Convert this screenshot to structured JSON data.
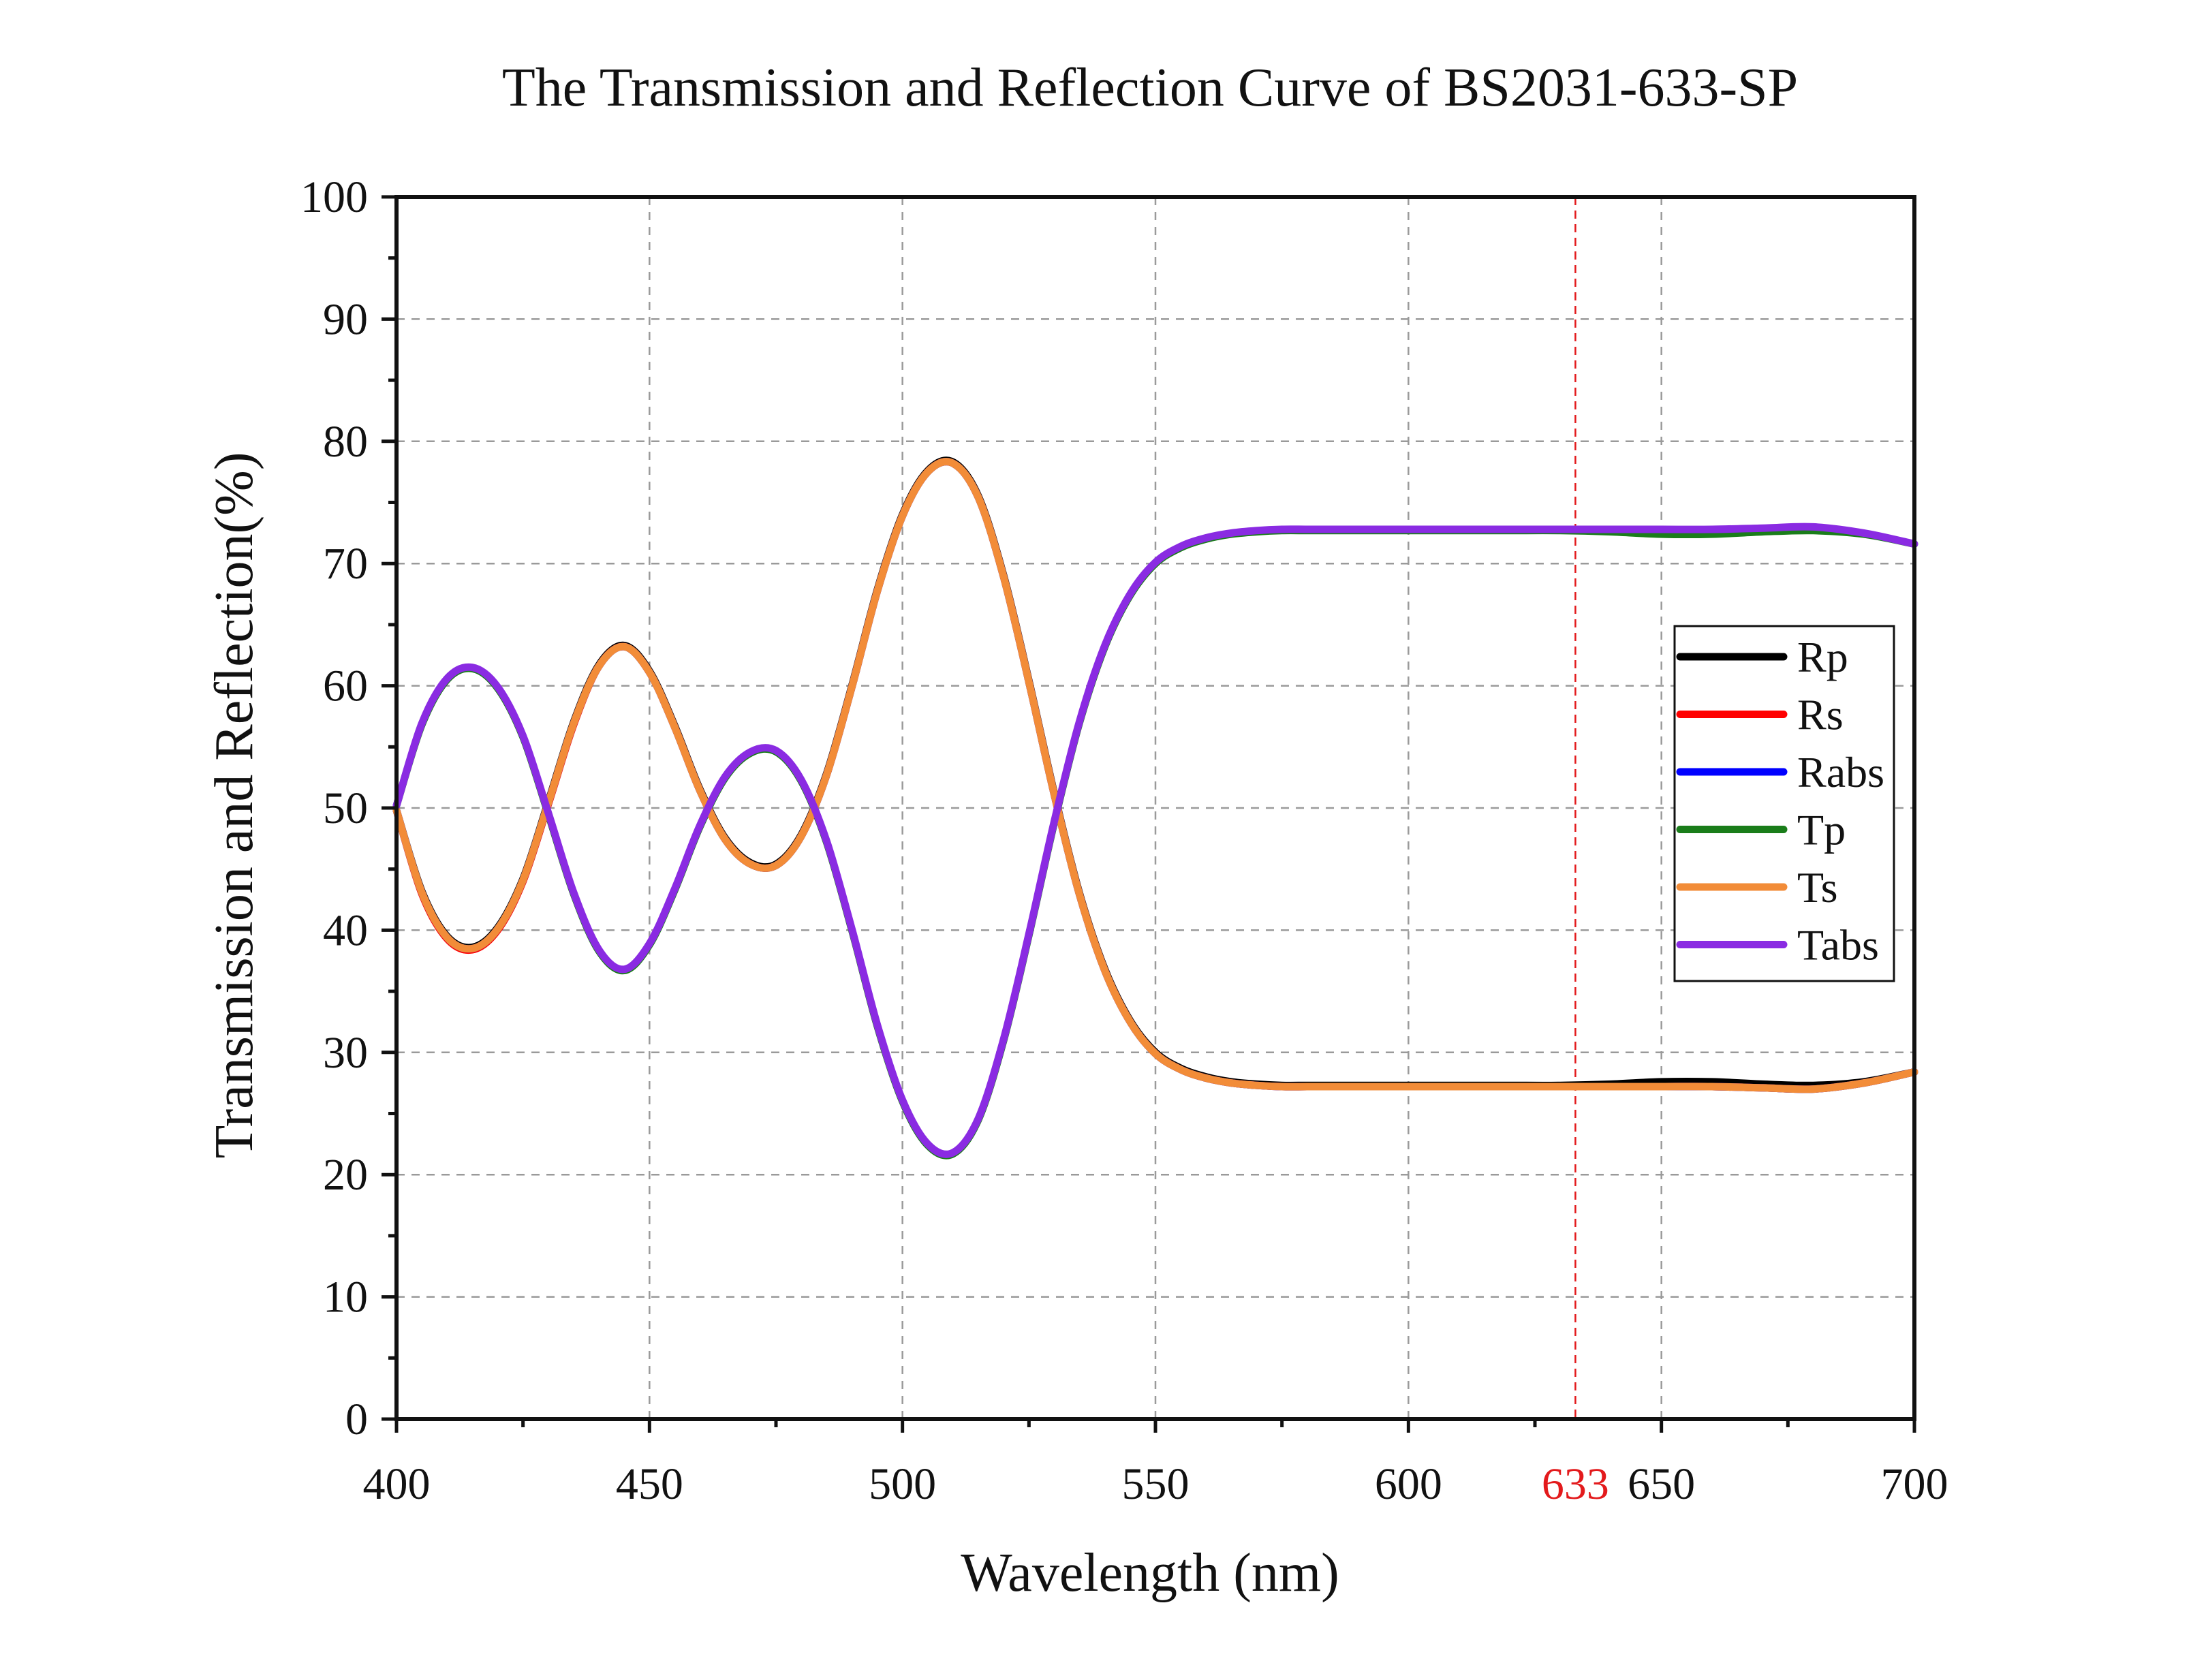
{
  "chart_data": {
    "type": "line",
    "title": "The Transmission and Reflection Curve of BS2031-633-SP",
    "xlabel": "Wavelength (nm)",
    "ylabel": "Transmission and Reflection(%)",
    "xlim": [
      400,
      700
    ],
    "ylim": [
      0,
      100
    ],
    "xticks": [
      400,
      450,
      500,
      550,
      600,
      650,
      700
    ],
    "yticks": [
      0,
      10,
      20,
      30,
      40,
      50,
      60,
      70,
      80,
      90,
      100
    ],
    "grid": true,
    "legend_position": "right",
    "reference_line": {
      "x": 633,
      "label": "633",
      "color": "#e31a1c"
    },
    "x": [
      400,
      405,
      410,
      415,
      420,
      425,
      430,
      435,
      440,
      445,
      450,
      455,
      460,
      465,
      470,
      475,
      480,
      485,
      490,
      495,
      500,
      505,
      510,
      515,
      520,
      525,
      530,
      535,
      540,
      545,
      550,
      555,
      560,
      565,
      570,
      575,
      580,
      585,
      590,
      595,
      600,
      610,
      620,
      630,
      640,
      650,
      660,
      670,
      680,
      690,
      700
    ],
    "series": [
      {
        "name": "Rp",
        "color": "#000000",
        "values": [
          49.8,
          43.2,
          39.5,
          38.6,
          40.2,
          44.2,
          50.5,
          57.0,
          61.7,
          63.3,
          61.2,
          56.7,
          51.5,
          47.5,
          45.5,
          45.4,
          47.8,
          52.8,
          60.0,
          67.8,
          74.0,
          77.6,
          78.3,
          75.5,
          69.0,
          60.4,
          51.2,
          43.0,
          36.8,
          32.6,
          30.0,
          28.7,
          28.0,
          27.6,
          27.4,
          27.3,
          27.3,
          27.3,
          27.3,
          27.3,
          27.3,
          27.3,
          27.3,
          27.3,
          27.4,
          27.6,
          27.6,
          27.4,
          27.3,
          27.6,
          28.4
        ]
      },
      {
        "name": "Rs",
        "color": "#ff0000",
        "values": [
          49.8,
          43.0,
          39.3,
          38.4,
          40.0,
          44.0,
          50.3,
          56.8,
          61.6,
          63.2,
          61.1,
          56.6,
          51.4,
          47.4,
          45.4,
          45.3,
          47.7,
          52.7,
          59.9,
          67.7,
          73.9,
          77.5,
          78.2,
          75.4,
          68.9,
          60.3,
          51.1,
          42.9,
          36.7,
          32.5,
          29.9,
          28.6,
          27.9,
          27.5,
          27.3,
          27.2,
          27.2,
          27.2,
          27.2,
          27.2,
          27.2,
          27.2,
          27.2,
          27.2,
          27.2,
          27.2,
          27.2,
          27.1,
          27.0,
          27.5,
          28.4
        ]
      },
      {
        "name": "Rabs",
        "color": "#0000ff",
        "values": [
          49.8,
          43.1,
          39.4,
          38.5,
          40.1,
          44.1,
          50.4,
          56.9,
          61.6,
          63.2,
          61.1,
          56.6,
          51.4,
          47.4,
          45.4,
          45.3,
          47.7,
          52.7,
          59.9,
          67.7,
          73.9,
          77.5,
          78.2,
          75.4,
          68.9,
          60.3,
          51.1,
          42.9,
          36.7,
          32.5,
          29.9,
          28.6,
          27.9,
          27.5,
          27.3,
          27.2,
          27.2,
          27.2,
          27.2,
          27.2,
          27.2,
          27.2,
          27.2,
          27.2,
          27.2,
          27.2,
          27.2,
          27.1,
          27.0,
          27.5,
          28.4
        ]
      },
      {
        "name": "Tp",
        "color": "#1a7d1a",
        "values": [
          50.2,
          56.8,
          60.5,
          61.4,
          59.8,
          55.8,
          49.5,
          43.0,
          38.3,
          36.7,
          38.8,
          43.3,
          48.5,
          52.5,
          54.5,
          54.6,
          52.2,
          47.2,
          40.0,
          32.2,
          26.0,
          22.4,
          21.7,
          24.5,
          31.0,
          39.6,
          48.8,
          57.0,
          63.2,
          67.4,
          70.0,
          71.3,
          72.0,
          72.4,
          72.6,
          72.7,
          72.7,
          72.7,
          72.7,
          72.7,
          72.7,
          72.7,
          72.7,
          72.7,
          72.6,
          72.4,
          72.4,
          72.6,
          72.7,
          72.4,
          71.6
        ]
      },
      {
        "name": "Ts",
        "color": "#f28c38",
        "values": [
          49.8,
          43.1,
          39.4,
          38.5,
          40.1,
          44.1,
          50.4,
          56.9,
          61.6,
          63.2,
          61.1,
          56.6,
          51.4,
          47.4,
          45.4,
          45.3,
          47.7,
          52.7,
          59.9,
          67.7,
          73.9,
          77.5,
          78.2,
          75.4,
          68.9,
          60.3,
          51.1,
          42.9,
          36.7,
          32.5,
          29.9,
          28.6,
          27.9,
          27.5,
          27.3,
          27.2,
          27.2,
          27.2,
          27.2,
          27.2,
          27.2,
          27.2,
          27.2,
          27.2,
          27.2,
          27.2,
          27.2,
          27.1,
          27.0,
          27.5,
          28.4
        ]
      },
      {
        "name": "Tabs",
        "color": "#8a2be2",
        "values": [
          50.2,
          56.9,
          60.6,
          61.5,
          59.9,
          55.9,
          49.6,
          43.1,
          38.4,
          36.8,
          38.9,
          43.4,
          48.6,
          52.6,
          54.6,
          54.7,
          52.3,
          47.3,
          40.1,
          32.3,
          26.1,
          22.5,
          21.8,
          24.6,
          31.1,
          39.7,
          48.9,
          57.1,
          63.3,
          67.5,
          70.1,
          71.4,
          72.1,
          72.5,
          72.7,
          72.8,
          72.8,
          72.8,
          72.8,
          72.8,
          72.8,
          72.8,
          72.8,
          72.8,
          72.8,
          72.8,
          72.8,
          72.9,
          73.0,
          72.5,
          71.6
        ]
      }
    ]
  }
}
